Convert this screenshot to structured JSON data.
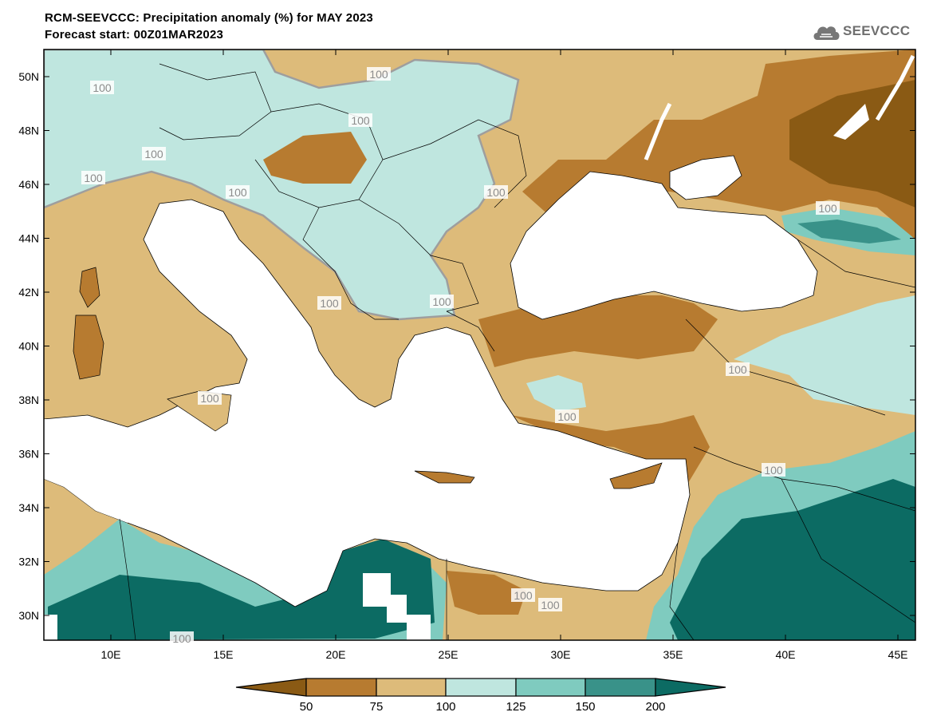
{
  "title_line1": "RCM-SEEVCCC: Precipitation anomaly (%) for MAY 2023",
  "title_line2": "Forecast start: 00Z01MAR2023",
  "logo_text": "SEEVCCC",
  "lat_labels": [
    "50N",
    "48N",
    "46N",
    "44N",
    "42N",
    "40N",
    "38N",
    "36N",
    "34N",
    "32N",
    "30N"
  ],
  "lon_labels": [
    "10E",
    "15E",
    "20E",
    "25E",
    "30E",
    "35E",
    "40E",
    "45E"
  ],
  "contour_labels": [
    "100",
    "100",
    "100",
    "100",
    "100",
    "100",
    "100",
    "100",
    "100",
    "100",
    "100",
    "100",
    "100",
    "100",
    "100",
    "100",
    "100"
  ],
  "legend": {
    "colors": [
      "#8a5a14",
      "#b77b30",
      "#ddbb7a",
      "#bfe6df",
      "#7fcbbf",
      "#399289",
      "#0c6b63"
    ],
    "labels": [
      "50",
      "75",
      "100",
      "125",
      "150",
      "200"
    ]
  },
  "colors": {
    "land_dry": "#ddbb7a",
    "land_wet": "#bfe6df",
    "sea": "#ffffff",
    "contour": "#9e9e9e"
  }
}
